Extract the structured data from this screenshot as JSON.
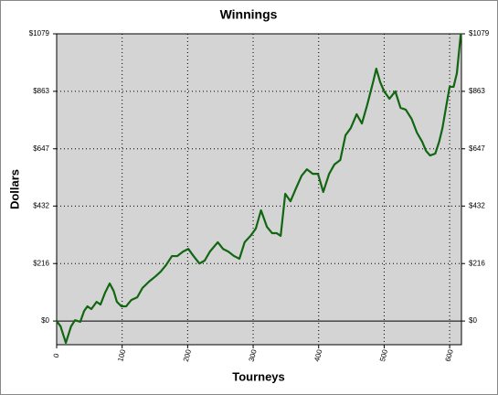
{
  "chart_data": {
    "type": "line",
    "title": "Winnings",
    "x_label": "Tourneys",
    "y_label": "Dollars",
    "x": [
      0,
      6,
      14,
      22,
      28,
      36,
      42,
      47,
      53,
      61,
      67,
      74,
      81,
      87,
      92,
      99,
      106,
      114,
      123,
      131,
      141,
      151,
      159,
      167,
      176,
      184,
      193,
      201,
      209,
      218,
      226,
      234,
      246,
      254,
      262,
      271,
      279,
      287,
      296,
      304,
      312,
      321,
      329,
      336,
      342,
      349,
      357,
      366,
      374,
      382,
      391,
      399,
      407,
      416,
      424,
      433,
      441,
      449,
      458,
      466,
      474,
      483,
      488,
      494,
      500,
      508,
      517,
      525,
      533,
      542,
      550,
      558,
      564,
      570,
      578,
      584,
      589,
      595,
      600,
      606,
      611,
      617
    ],
    "series": [
      {
        "name": "Winnings",
        "color": "#116611",
        "values": [
          0,
          -20,
          -82,
          -20,
          3,
          -3,
          38,
          55,
          45,
          72,
          62,
          107,
          141,
          113,
          72,
          55,
          55,
          79,
          89,
          124,
          148,
          168,
          186,
          210,
          244,
          244,
          261,
          271,
          244,
          216,
          227,
          261,
          296,
          271,
          261,
          244,
          234,
          296,
          320,
          347,
          416,
          354,
          330,
          330,
          320,
          478,
          450,
          502,
          546,
          570,
          553,
          553,
          485,
          553,
          588,
          605,
          698,
          725,
          777,
          742,
          811,
          897,
          948,
          897,
          863,
          835,
          863,
          801,
          794,
          759,
          708,
          674,
          639,
          622,
          629,
          674,
          725,
          811,
          880,
          880,
          931,
          1079
        ]
      }
    ],
    "xlim": [
      0,
      618
    ],
    "xticks": [
      0,
      100,
      200,
      300,
      400,
      500,
      600
    ],
    "ylim": [
      -89,
      1079
    ],
    "yticks": [
      {
        "value": 0,
        "label": "$0"
      },
      {
        "value": 216,
        "label": "$216"
      },
      {
        "value": 432,
        "label": "$432"
      },
      {
        "value": 647,
        "label": "$647"
      },
      {
        "value": 863,
        "label": "$863"
      },
      {
        "value": 1079,
        "label": "$1079"
      }
    ],
    "grid": true,
    "plot_background": "#d4d4d4"
  }
}
